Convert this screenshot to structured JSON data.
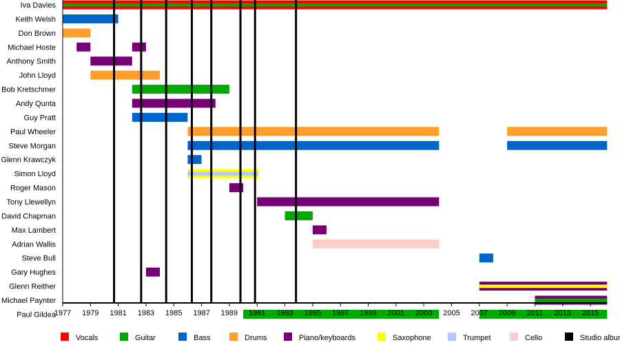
{
  "chart_data": {
    "type": "timeline",
    "title": "",
    "x_range": [
      1977,
      2016.2
    ],
    "x_ticks": [
      1977,
      1979,
      1981,
      1983,
      1985,
      1987,
      1989,
      1991,
      1993,
      1995,
      1997,
      1999,
      2001,
      2003,
      2005,
      2007,
      2009,
      2011,
      2013,
      2015
    ],
    "colors": {
      "Vocals": "#ff0000",
      "Guitar": "#00aa00",
      "Bass": "#0066cc",
      "Drums": "#ff9f29",
      "Piano/keyboards": "#770077",
      "Saxophone": "#ffff00",
      "Trumpet": "#b0c8ff",
      "Cello": "#ffcccc",
      "Studio album": "#000000"
    },
    "legend": [
      "Vocals",
      "Guitar",
      "Bass",
      "Drums",
      "Piano/keyboards",
      "Saxophone",
      "Trumpet",
      "Cello",
      "Studio album"
    ],
    "studio_albums": [
      1980.7,
      1982.65,
      1984.45,
      1986.3,
      1987.7,
      1989.8,
      1990.85,
      1993.8
    ],
    "members": [
      {
        "name": "Iva Davies",
        "roles": [
          "Vocals",
          "Guitar"
        ],
        "periods": [
          [
            1977,
            2016.2
          ]
        ]
      },
      {
        "name": "Keith Welsh",
        "roles": [
          "Bass"
        ],
        "periods": [
          [
            1977,
            1981
          ]
        ]
      },
      {
        "name": "Don Brown",
        "roles": [
          "Drums"
        ],
        "periods": [
          [
            1977,
            1979
          ]
        ]
      },
      {
        "name": "Michael Hoste",
        "roles": [
          "Piano/keyboards"
        ],
        "periods": [
          [
            1978,
            1979
          ],
          [
            1982,
            1983
          ]
        ]
      },
      {
        "name": "Anthony Smith",
        "roles": [
          "Piano/keyboards"
        ],
        "periods": [
          [
            1979,
            1982
          ]
        ]
      },
      {
        "name": "John Lloyd",
        "roles": [
          "Drums"
        ],
        "periods": [
          [
            1979,
            1984
          ]
        ]
      },
      {
        "name": "Bob Kretschmer",
        "roles": [
          "Guitar"
        ],
        "periods": [
          [
            1982,
            1989
          ]
        ]
      },
      {
        "name": "Andy Qunta",
        "roles": [
          "Piano/keyboards"
        ],
        "periods": [
          [
            1982,
            1988
          ]
        ]
      },
      {
        "name": "Guy Pratt",
        "roles": [
          "Bass"
        ],
        "periods": [
          [
            1982,
            1986
          ]
        ]
      },
      {
        "name": "Paul Wheeler",
        "roles": [
          "Drums"
        ],
        "periods": [
          [
            1986,
            2004.1
          ],
          [
            2009,
            2016.2
          ]
        ]
      },
      {
        "name": "Steve Morgan",
        "roles": [
          "Bass"
        ],
        "periods": [
          [
            1986,
            2004.1
          ],
          [
            2009,
            2016.2
          ]
        ]
      },
      {
        "name": "Glenn Krawczyk",
        "roles": [
          "Bass"
        ],
        "periods": [
          [
            1986,
            1987
          ]
        ]
      },
      {
        "name": "Simon Lloyd",
        "roles": [
          "Saxophone",
          "Trumpet"
        ],
        "periods": [
          [
            1986,
            1991.1
          ]
        ]
      },
      {
        "name": "Roger Mason",
        "roles": [
          "Piano/keyboards"
        ],
        "periods": [
          [
            1989,
            1990
          ]
        ]
      },
      {
        "name": "Tony Llewellyn",
        "roles": [
          "Piano/keyboards"
        ],
        "periods": [
          [
            1991,
            2004.1
          ]
        ]
      },
      {
        "name": "David Chapman",
        "roles": [
          "Guitar"
        ],
        "periods": [
          [
            1993,
            1995
          ]
        ]
      },
      {
        "name": "Max Lambert",
        "roles": [
          "Piano/keyboards"
        ],
        "periods": [
          [
            1995,
            1996
          ]
        ]
      },
      {
        "name": "Adrian Wallis",
        "roles": [
          "Cello"
        ],
        "periods": [
          [
            1995,
            2004.1
          ]
        ]
      },
      {
        "name": "Steve Bull",
        "roles": [
          "Bass"
        ],
        "periods": [
          [
            2007,
            2008
          ]
        ]
      },
      {
        "name": "Gary Hughes",
        "roles": [
          "Piano/keyboards"
        ],
        "periods": [
          [
            1983,
            1984
          ]
        ]
      },
      {
        "name": "Glenn Reither",
        "roles": [
          "Piano/keyboards",
          "Saxophone"
        ],
        "periods": [
          [
            2007,
            2016.2
          ]
        ]
      },
      {
        "name": "Michael Paynter",
        "roles": [
          "Piano/keyboards",
          "Guitar"
        ],
        "periods": [
          [
            2011,
            2016.2
          ]
        ]
      },
      {
        "name": "Paul Gildea",
        "roles": [
          "Guitar"
        ],
        "periods": [
          [
            1990,
            2004.1
          ],
          [
            2007,
            2016.2
          ]
        ]
      }
    ]
  }
}
